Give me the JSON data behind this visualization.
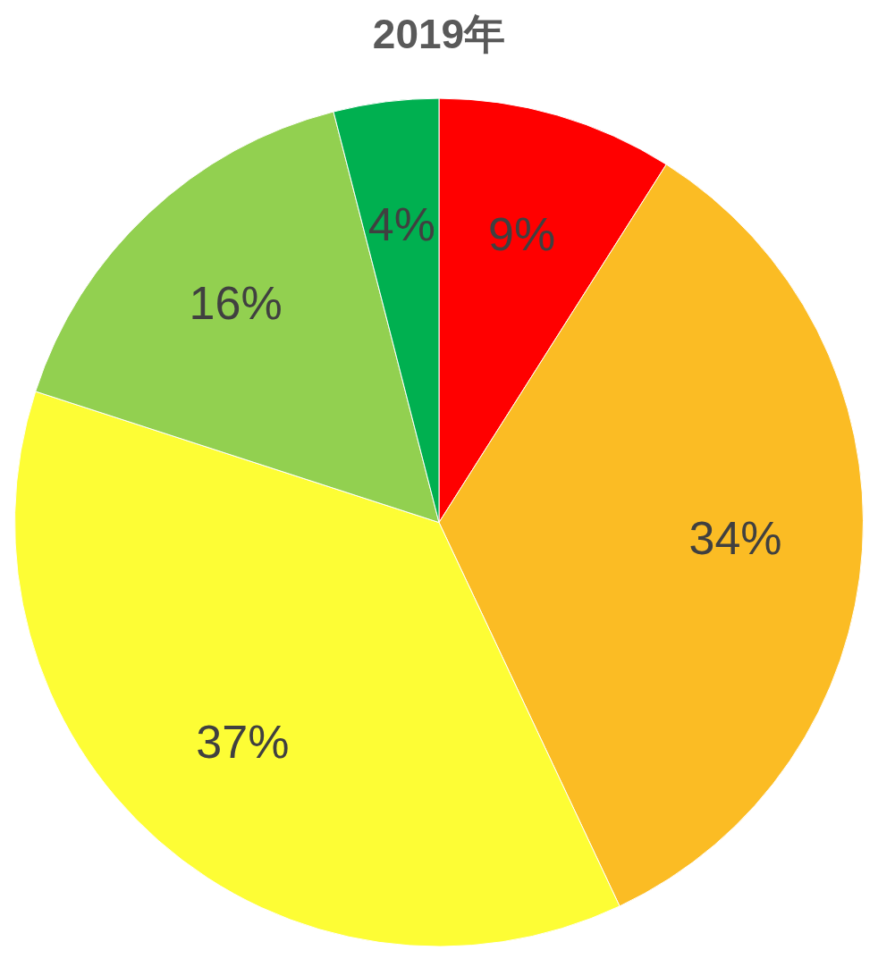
{
  "chart_data": {
    "type": "pie",
    "title": "2019年",
    "categories": [
      null,
      null,
      null,
      null,
      null
    ],
    "values": [
      9,
      34,
      37,
      16,
      4
    ],
    "colors": [
      "#ff0000",
      "#fbbc24",
      "#fdfd35",
      "#92d050",
      "#00b050"
    ],
    "value_labels": [
      "9%",
      "34%",
      "37%",
      "16%",
      "4%"
    ],
    "legend": false
  }
}
